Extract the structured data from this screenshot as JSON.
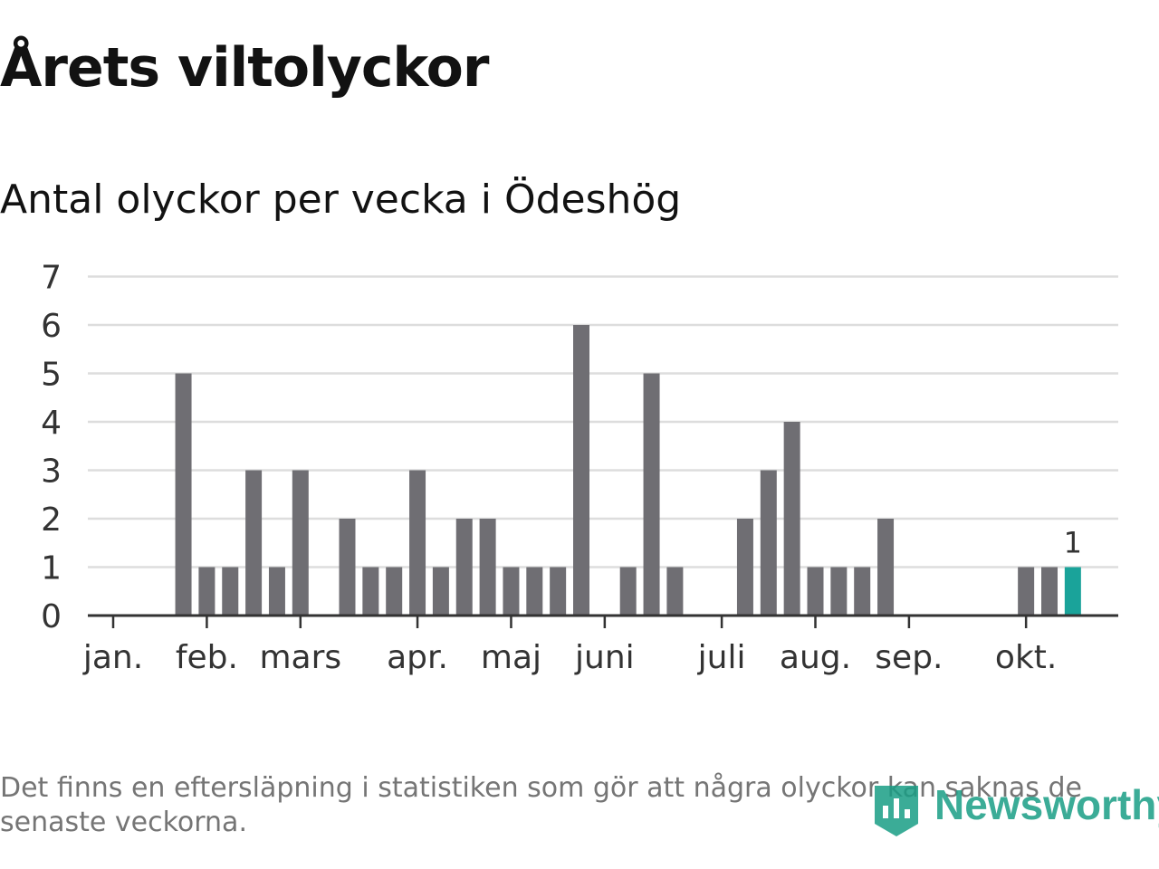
{
  "header": {
    "title": "Årets viltolyckor",
    "subtitle": "Antal olyckor per vecka i Ödeshög"
  },
  "chart_data": {
    "type": "bar",
    "title": "Antal olyckor per vecka i Ödeshög",
    "xlabel": "",
    "ylabel": "",
    "ylim": [
      0,
      7
    ],
    "yticks": [
      0,
      1,
      2,
      3,
      4,
      5,
      6,
      7
    ],
    "grid": true,
    "weeks": [
      1,
      2,
      3,
      4,
      5,
      6,
      7,
      8,
      9,
      10,
      11,
      12,
      13,
      14,
      15,
      16,
      17,
      18,
      19,
      20,
      21,
      22,
      23,
      24,
      25,
      26,
      27,
      28,
      29,
      30,
      31,
      32,
      33,
      34,
      35,
      36,
      37,
      38,
      39,
      40,
      41,
      42
    ],
    "values": [
      0,
      0,
      0,
      5,
      1,
      1,
      3,
      1,
      3,
      0,
      2,
      1,
      1,
      3,
      1,
      2,
      2,
      1,
      1,
      1,
      6,
      0,
      1,
      5,
      1,
      0,
      0,
      2,
      3,
      4,
      1,
      1,
      1,
      2,
      0,
      0,
      0,
      0,
      0,
      1,
      1,
      1
    ],
    "highlight_index": 41,
    "highlight_label": "1",
    "colors": {
      "bar": "#6f6e73",
      "highlight": "#1aa39a",
      "grid": "#dddddd",
      "axis": "#333333"
    },
    "months": [
      {
        "label": "jan.",
        "week": 1
      },
      {
        "label": "feb.",
        "week": 5
      },
      {
        "label": "mars",
        "week": 9
      },
      {
        "label": "apr.",
        "week": 14
      },
      {
        "label": "maj",
        "week": 18
      },
      {
        "label": "juni",
        "week": 22
      },
      {
        "label": "juli",
        "week": 27
      },
      {
        "label": "aug.",
        "week": 31
      },
      {
        "label": "sep.",
        "week": 35
      },
      {
        "label": "okt.",
        "week": 40
      }
    ]
  },
  "footer": {
    "note": "Det finns en eftersläpning i statistiken som gör att några olyckor kan saknas de senaste veckorna.",
    "brand": "Newsworthy",
    "logo_icon": "newsworthy-chart-icon"
  }
}
